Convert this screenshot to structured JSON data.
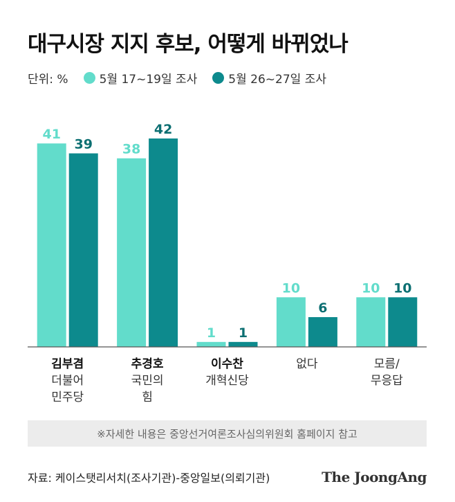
{
  "title": "대구시장 지지 후보, 어떻게 바뀌었나",
  "legend": {
    "unit": "단위: %",
    "items": [
      {
        "label": "5월 17~19일 조사",
        "color": "#62dccb"
      },
      {
        "label": "5월 26~27일 조사",
        "color": "#0d8a8d"
      }
    ]
  },
  "chart_data": {
    "type": "bar",
    "categories": [
      {
        "name": "김부겸",
        "party": [
          "더불어",
          "민주당"
        ]
      },
      {
        "name": "추경호",
        "party": [
          "국민의",
          "힘"
        ]
      },
      {
        "name": "이수찬",
        "party": [
          "개혁신당"
        ]
      },
      {
        "name": "",
        "party": [
          "없다"
        ]
      },
      {
        "name": "",
        "party": [
          "모름/",
          "무응답"
        ]
      }
    ],
    "series": [
      {
        "name": "5월 17~19일 조사",
        "values": [
          41,
          38,
          1,
          10,
          10
        ],
        "color": "#62dccb",
        "label_color": "#62dccb"
      },
      {
        "name": "5월 26~27일 조사",
        "values": [
          39,
          42,
          1,
          6,
          10
        ],
        "color": "#0d8a8d",
        "label_color": "#0c6f72"
      }
    ],
    "ylim": [
      0,
      42
    ],
    "xlabel": "",
    "ylabel": "",
    "grid": false
  },
  "note": "※자세한 내용은 중앙선거여론조사심의위원회 홈페이지 참고",
  "footer": {
    "source": "자료: 케이스탯리서치(조사기관)-중앙일보(의뢰기관)",
    "brand": "The JoongAng"
  }
}
